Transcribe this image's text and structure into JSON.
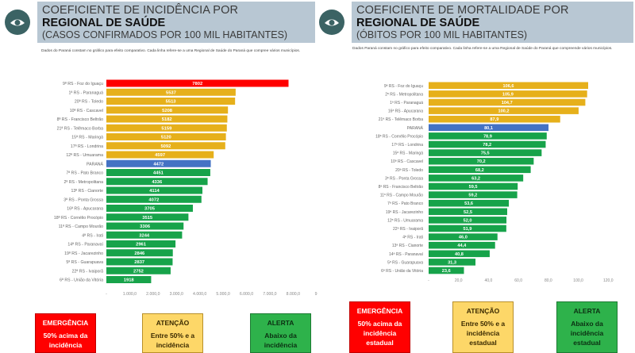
{
  "colors": {
    "emergency": "#ff0000",
    "attention": "#e6b01b",
    "state": "#4472c4",
    "alert": "#17a34a",
    "header_bg": "#b8c7d3",
    "logo": "#3b6364"
  },
  "logo_icon": "eye-icon",
  "chart_data": [
    {
      "type": "bar",
      "orientation": "horizontal",
      "title_line1": "COEFICIENTE DE INCIDÊNCIA POR",
      "title_line2": "REGIONAL DE SAÚDE",
      "title_line3": "(CASOS CONFIRMADOS POR 100 MIL HABITANTES)",
      "note": "Dados do Paraná constam no gráfico para efeito comparativo. Cada linha refere-se a uma Regional de Saúde do Paraná que compree vários municípios.",
      "xlim": [
        0,
        9000
      ],
      "xticks": [
        "-",
        "1.000,0",
        "2.000,0",
        "3.000,0",
        "4.000,0",
        "5.000,0",
        "6.000,0",
        "7.000,0",
        "8.000,0",
        "9."
      ],
      "xtick_values": [
        0,
        1000,
        2000,
        3000,
        4000,
        5000,
        6000,
        7000,
        8000,
        9000
      ],
      "categories": [
        "9ª RS - Foz do Iguaçu",
        "1ª RS - Paranaguá",
        "20ª RS - Toledo",
        "10ª RS - Cascavel",
        "8ª RS - Francisco Beltrão",
        "21ª RS - Telêmaco Borba",
        "15ª RS - Maringá",
        "17ª RS - Londrina",
        "12ª RS - Umuarama",
        "PARANÁ",
        "7ª RS - Pato Branco",
        "2ª RS - Metropolitana",
        "13ª RS - Cianorte",
        "3ª RS - Ponta Grossa",
        "16ª RS - Apucarana",
        "18ª RS - Cornélio Procópio",
        "11ª RS - Campo Mourão",
        "4ª RS - Irati",
        "14ª RS - Paranavaí",
        "19ª RS - Jacarezinho",
        "5ª RS - Guarapuava",
        "22ª RS - Ivaiporã",
        "6ª RS - União da Vitória"
      ],
      "values": [
        7802,
        5537,
        5513,
        5208,
        5182,
        5159,
        5120,
        5092,
        4597,
        4472,
        4451,
        4336,
        4114,
        4072,
        3705,
        3515,
        3306,
        3244,
        2961,
        2846,
        2837,
        2752,
        1918
      ],
      "labels": [
        "7802",
        "5537",
        "5513",
        "5208",
        "5182",
        "5159",
        "5120",
        "5092",
        "4597",
        "4472",
        "4451",
        "4336",
        "4114",
        "4072",
        "3705",
        "3515",
        "3306",
        "3244",
        "2961",
        "2846",
        "2837",
        "2752",
        "1918"
      ],
      "status": [
        "emergency",
        "attention",
        "attention",
        "attention",
        "attention",
        "attention",
        "attention",
        "attention",
        "attention",
        "state",
        "alert",
        "alert",
        "alert",
        "alert",
        "alert",
        "alert",
        "alert",
        "alert",
        "alert",
        "alert",
        "alert",
        "alert",
        "alert"
      ],
      "legend": [
        {
          "status": "emergency",
          "title": "EMERGÊNCIA",
          "desc": "50% acima da incidência"
        },
        {
          "status": "attention",
          "title": "ATENÇÃO",
          "desc": "Entre 50% e a incidência"
        },
        {
          "status": "alert",
          "title": "ALERTA",
          "desc": "Abaixo da incidência"
        }
      ]
    },
    {
      "type": "bar",
      "orientation": "horizontal",
      "title_line1": "COEFICIENTE DE MORTALIDADE POR",
      "title_line2": "REGIONAL DE SAÚDE",
      "title_line3": "(ÓBITOS POR 100 MIL HABITANTES)",
      "note": "Dados Paraná constam no gráfico para efeito comparativo. Cada linha refere-se a uma Regional de Saúde do Paraná que compreende vários municípios.",
      "xlim": [
        0,
        120
      ],
      "xticks": [
        "-",
        "20,0",
        "40,0",
        "60,0",
        "80,0",
        "100,0",
        "120,0"
      ],
      "xtick_values": [
        0,
        20,
        40,
        60,
        80,
        100,
        120
      ],
      "categories": [
        "9ª RS - Foz do Iguaçu",
        "2ª RS - Metropolitana",
        "1ª RS - Paranaguá",
        "16ª RS - Apucarana",
        "21ª RS - Telêmaco Borba",
        "PARANÁ",
        "18ª RS - Cornélio Procópio",
        "17ª RS - Londrina",
        "15ª RS - Maringá",
        "10ª RS - Cascavel",
        "20ª RS - Toledo",
        "3ª RS - Ponta Grossa",
        "8ª RS - Francisco Beltrão",
        "11ª RS - Campo Mourão",
        "7ª RS - Pato Branco",
        "19ª RS - Jacarezinho",
        "12ª RS - Umuarama",
        "22ª RS - Ivaiporã",
        "4ª RS - Irati",
        "13ª RS - Cianorte",
        "14ª RS - Paranavaí",
        "5ª RS - Guarapuava",
        "6ª RS - União da Vitória"
      ],
      "values": [
        106.6,
        105.9,
        104.7,
        100.2,
        87.9,
        80.1,
        78.9,
        78.2,
        75.5,
        70.2,
        68.2,
        63.2,
        59.5,
        59.2,
        53.6,
        52.5,
        52.0,
        51.9,
        46.0,
        44.4,
        40.8,
        31.3,
        23.6
      ],
      "labels": [
        "106,6",
        "105,9",
        "104,7",
        "100,2",
        "87,9",
        "80,1",
        "78,9",
        "78,2",
        "75,5",
        "70,2",
        "68,2",
        "63,2",
        "59,5",
        "59,2",
        "53,6",
        "52,5",
        "52,0",
        "51,9",
        "46,0",
        "44,4",
        "40,8",
        "31,3",
        "23,6"
      ],
      "status": [
        "attention",
        "attention",
        "attention",
        "attention",
        "attention",
        "state",
        "alert",
        "alert",
        "alert",
        "alert",
        "alert",
        "alert",
        "alert",
        "alert",
        "alert",
        "alert",
        "alert",
        "alert",
        "alert",
        "alert",
        "alert",
        "alert",
        "alert"
      ],
      "legend": [
        {
          "status": "emergency",
          "title": "EMERGÊNCIA",
          "desc": "50% acima da incidência estadual"
        },
        {
          "status": "attention",
          "title": "ATENÇÃO",
          "desc": "Entre 50% e a incidência estadual"
        },
        {
          "status": "alert",
          "title": "ALERTA",
          "desc": "Abaixo da incidência estadual"
        }
      ]
    }
  ]
}
